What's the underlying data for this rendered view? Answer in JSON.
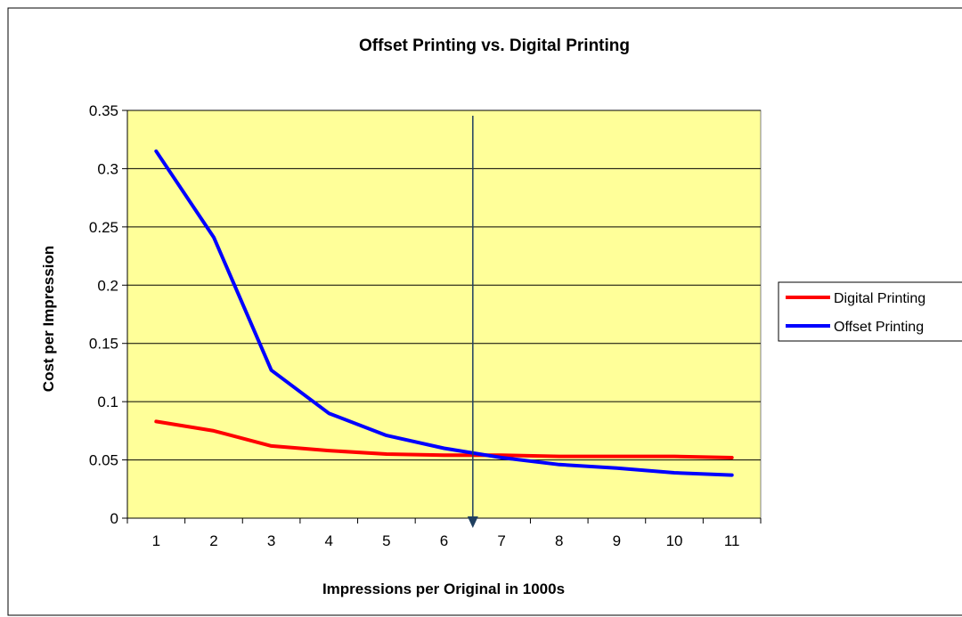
{
  "chart_data": {
    "type": "line",
    "title": "Offset Printing vs. Digital Printing",
    "xlabel": "Impressions per Original in 1000s",
    "ylabel": "Cost per Impression",
    "categories": [
      "1",
      "2",
      "3",
      "4",
      "5",
      "6",
      "7",
      "8",
      "9",
      "10",
      "11"
    ],
    "y_ticks": [
      "0",
      "0.05",
      "0.1",
      "0.15",
      "0.2",
      "0.25",
      "0.3",
      "0.35"
    ],
    "ylim": [
      0,
      0.35
    ],
    "grid": true,
    "legend_position": "right",
    "plot_background": "#FFFF99",
    "series": [
      {
        "name": "Digital Printing",
        "color": "#FF0000",
        "values": [
          0.083,
          0.075,
          0.062,
          0.058,
          0.055,
          0.054,
          0.054,
          0.053,
          0.053,
          0.053,
          0.052
        ]
      },
      {
        "name": "Offset Printing",
        "color": "#0000FF",
        "values": [
          0.315,
          0.241,
          0.127,
          0.09,
          0.071,
          0.06,
          0.052,
          0.046,
          0.043,
          0.039,
          0.037
        ]
      }
    ],
    "annotation": {
      "type": "vertical-arrow",
      "x": 6.5,
      "color": "#1F3F5F"
    }
  }
}
